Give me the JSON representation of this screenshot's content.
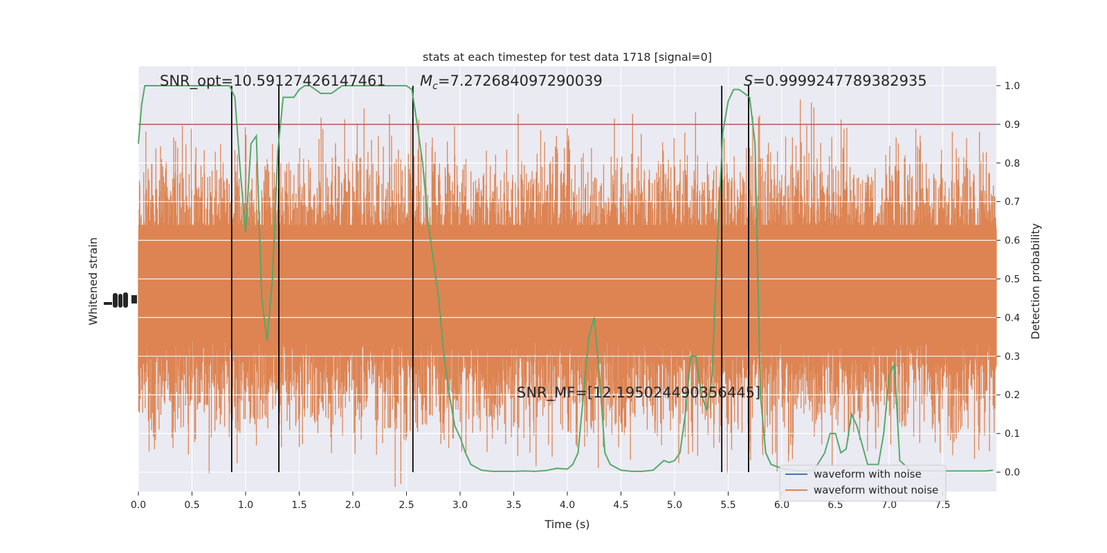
{
  "chart_data": {
    "type": "line",
    "title": "stats at each timestep for test data 1718 [signal=0]",
    "xlabel": "Time (s)",
    "ylabel_left": "Whitened strain",
    "ylabel_right": "Detection probability",
    "xlim": [
      0,
      8
    ],
    "ylim_right": [
      -0.05,
      1.05
    ],
    "x_ticks": [
      "0.0",
      "0.5",
      "1.0",
      "1.5",
      "2.0",
      "2.5",
      "3.0",
      "3.5",
      "4.0",
      "4.5",
      "5.0",
      "5.5",
      "6.0",
      "6.5",
      "7.0",
      "7.5"
    ],
    "y_ticks_right": [
      "0.0",
      "0.1",
      "0.2",
      "0.3",
      "0.4",
      "0.5",
      "0.6",
      "0.7",
      "0.8",
      "0.9",
      "1.0"
    ],
    "annotations": {
      "snr_opt": "SNR_opt=10.59127426147461",
      "mc_prefix": "M",
      "mc_sub": "c",
      "mc_value": "=7.272684097290039",
      "s_prefix": "S",
      "s_value": "=0.9999247789382935",
      "snr_mf": "SNR_MF=[12.195024490356445]"
    },
    "threshold": 0.9,
    "vertical_lines_x": [
      0.87,
      1.31,
      2.56,
      5.44,
      5.69
    ],
    "legend": {
      "placement": "lower-right",
      "entries": [
        {
          "name": "waveform with noise",
          "color": "#4c72b0"
        },
        {
          "name": "waveform without noise",
          "color": "#dd8452"
        }
      ]
    },
    "colors": {
      "plot_bg": "#eaeaf2",
      "strain": "#dd8452",
      "probability": "#55a868",
      "threshold": "#c44e52",
      "vlines": "#000000"
    },
    "series": [
      {
        "name": "waveform without noise",
        "style": "dense noise band",
        "x_range": [
          0,
          8
        ],
        "center": 0.46,
        "typical_band": [
          0.27,
          0.71
        ],
        "peak_extremes": [
          0.04,
          0.93
        ]
      },
      {
        "name": "Detection probability",
        "x": [
          0.0,
          0.03,
          0.06,
          0.12,
          0.2,
          0.3,
          0.4,
          0.5,
          0.6,
          0.7,
          0.8,
          0.85,
          0.9,
          0.95,
          1.0,
          1.05,
          1.1,
          1.15,
          1.2,
          1.25,
          1.3,
          1.35,
          1.4,
          1.45,
          1.5,
          1.55,
          1.6,
          1.7,
          1.8,
          1.9,
          2.0,
          2.1,
          2.2,
          2.3,
          2.4,
          2.5,
          2.55,
          2.6,
          2.65,
          2.7,
          2.75,
          2.8,
          2.85,
          2.9,
          2.95,
          3.0,
          3.05,
          3.1,
          3.2,
          3.3,
          3.4,
          3.5,
          3.6,
          3.7,
          3.8,
          3.9,
          4.0,
          4.05,
          4.1,
          4.15,
          4.2,
          4.25,
          4.3,
          4.35,
          4.4,
          4.5,
          4.6,
          4.7,
          4.8,
          4.9,
          4.95,
          5.0,
          5.05,
          5.1,
          5.15,
          5.2,
          5.25,
          5.3,
          5.35,
          5.4,
          5.45,
          5.5,
          5.55,
          5.6,
          5.65,
          5.7,
          5.75,
          5.8,
          5.85,
          5.9,
          6.0,
          6.1,
          6.2,
          6.3,
          6.4,
          6.45,
          6.5,
          6.55,
          6.6,
          6.65,
          6.7,
          6.75,
          6.8,
          6.9,
          6.95,
          7.0,
          7.05,
          7.1,
          7.2,
          7.3,
          7.4,
          7.5,
          7.6,
          7.7,
          7.8,
          7.9,
          7.97
        ],
        "y": [
          0.85,
          0.95,
          1.0,
          1.0,
          1.0,
          1.0,
          1.0,
          1.0,
          1.0,
          1.0,
          1.0,
          1.0,
          0.97,
          0.78,
          0.62,
          0.85,
          0.87,
          0.45,
          0.34,
          0.5,
          0.83,
          0.97,
          0.97,
          0.97,
          0.99,
          1.0,
          1.0,
          0.98,
          0.98,
          1.0,
          1.0,
          1.0,
          1.0,
          1.0,
          1.0,
          1.0,
          0.99,
          0.9,
          0.8,
          0.65,
          0.55,
          0.45,
          0.3,
          0.2,
          0.12,
          0.09,
          0.05,
          0.02,
          0.005,
          0.002,
          0.002,
          0.002,
          0.003,
          0.002,
          0.004,
          0.01,
          0.008,
          0.02,
          0.05,
          0.2,
          0.35,
          0.4,
          0.25,
          0.05,
          0.02,
          0.005,
          0.002,
          0.002,
          0.005,
          0.03,
          0.025,
          0.03,
          0.05,
          0.15,
          0.3,
          0.3,
          0.2,
          0.16,
          0.25,
          0.6,
          0.88,
          0.96,
          0.99,
          0.99,
          0.98,
          0.97,
          0.85,
          0.2,
          0.05,
          0.02,
          0.01,
          0.005,
          0.003,
          0.005,
          0.05,
          0.1,
          0.1,
          0.05,
          0.06,
          0.15,
          0.12,
          0.07,
          0.02,
          0.02,
          0.1,
          0.25,
          0.28,
          0.03,
          0.005,
          0.003,
          0.003,
          0.003,
          0.003,
          0.003,
          0.003,
          0.003,
          0.005
        ]
      }
    ]
  }
}
